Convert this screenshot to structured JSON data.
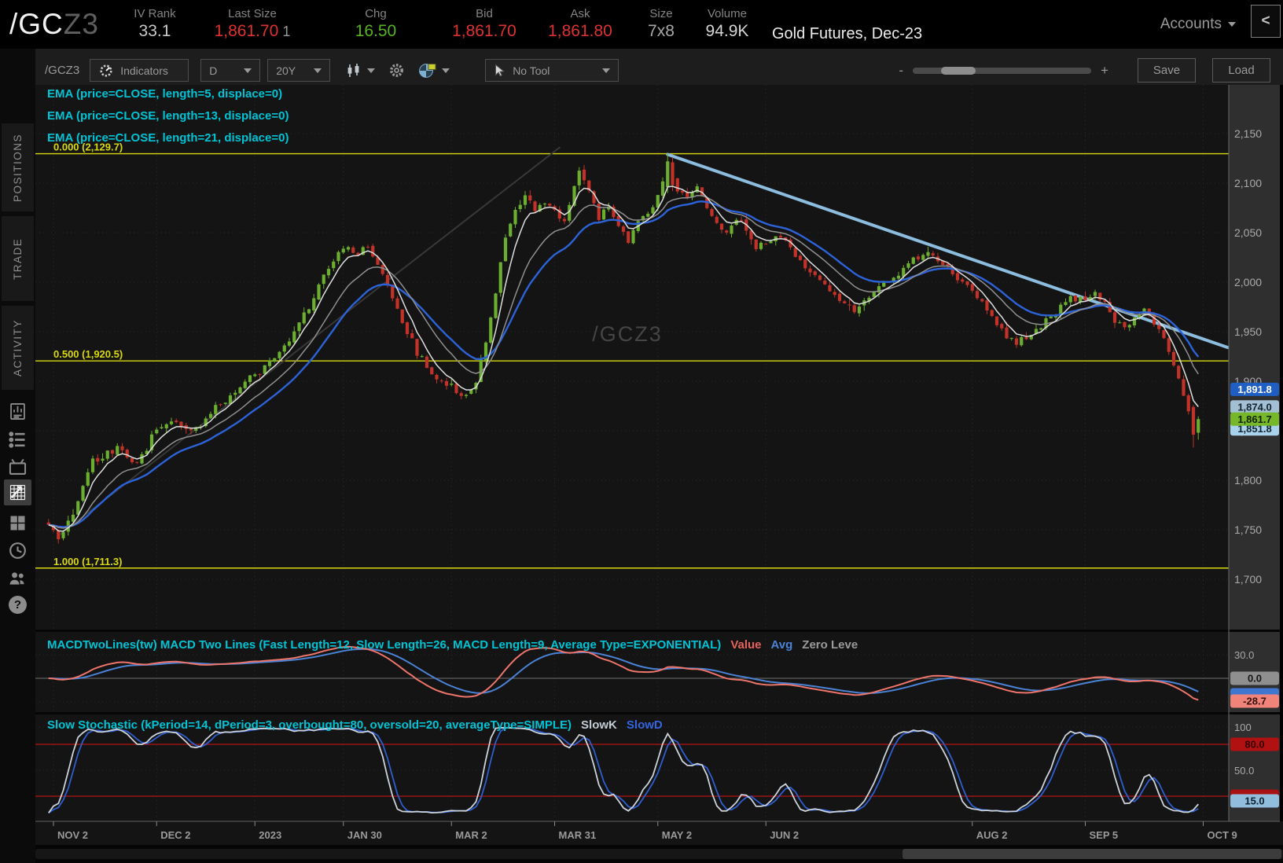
{
  "icons": {
    "minus": "-",
    "plus": "+",
    "help": "?",
    "collapse_left": "<"
  },
  "header": {
    "symbol_main": "/GC",
    "symbol_suffix": "Z3",
    "stats": [
      {
        "label": "IV Rank",
        "value": "33.1",
        "color": "#c9c9c9"
      },
      {
        "label": "Last Size",
        "value": "1,861.70",
        "extra": "1",
        "color": "#e03131"
      },
      {
        "label": "Chg",
        "value": "16.50",
        "color": "#55b41f"
      },
      {
        "label": "Bid",
        "value": "1,861.70",
        "color": "#e03131"
      },
      {
        "label": "Ask",
        "value": "1,861.80",
        "color": "#e03131"
      },
      {
        "label": "Size",
        "value": "7x8",
        "color": "#a8a8a8"
      },
      {
        "label": "Volume",
        "value": "94.9K",
        "color": "#d6d6d6"
      }
    ],
    "description": "Gold Futures, Dec-23",
    "accounts_label": "Accounts"
  },
  "sidebar": {
    "tabs": [
      "POSITIONS",
      "TRADE",
      "ACTIVITY"
    ],
    "icons": [
      "quote-book-icon",
      "watchlist-icon",
      "tv-icon",
      "chart-grid-icon",
      "dashboard-icon",
      "history-clock-icon",
      "community-icon",
      "help-icon"
    ],
    "active_icon": "chart-grid-icon"
  },
  "toolbar": {
    "symbol_label": "/GCZ3",
    "indicators_label": "Indicators",
    "timeframe": "D",
    "range": "20Y",
    "tool_label": "No Tool",
    "save_label": "Save",
    "load_label": "Load"
  },
  "chart_data": {
    "type": "candlestick",
    "symbol": "/GCZ3",
    "watermark": "/GCZ3",
    "timeframe": "D",
    "ema_labels": [
      "EMA (price=CLOSE, length=5, displace=0)",
      "EMA (price=CLOSE, length=13, displace=0)",
      "EMA (price=CLOSE, length=21, displace=0)"
    ],
    "emas": [
      {
        "length": 5,
        "color": "#dedede"
      },
      {
        "length": 13,
        "color": "#909090"
      },
      {
        "length": 21,
        "color": "#2c63d9"
      }
    ],
    "y_axis": {
      "ticks": [
        2150,
        2100,
        2050,
        2000,
        1950,
        1900,
        1850,
        1800,
        1750,
        1700
      ]
    },
    "x_axis": {
      "ticks": [
        {
          "label": "NOV 2",
          "day": 1
        },
        {
          "label": "DEC 2",
          "day": 22
        },
        {
          "label": "2023",
          "day": 42
        },
        {
          "label": "JAN 30",
          "day": 60
        },
        {
          "label": "MAR 2",
          "day": 82
        },
        {
          "label": "MAR 31",
          "day": 103
        },
        {
          "label": "MAY 2",
          "day": 124
        },
        {
          "label": "JUN 2",
          "day": 146
        },
        {
          "label": "AUG 2",
          "day": 188
        },
        {
          "label": "SEP 5",
          "day": 211
        },
        {
          "label": "OCT 9",
          "day": 235
        }
      ]
    },
    "fib_levels": [
      {
        "label": "0.000 (2,129.7)",
        "price": 2129.7
      },
      {
        "label": "0.500 (1,920.5)",
        "price": 1920.5
      },
      {
        "label": "1.000 (1,711.3)",
        "price": 1711.3
      }
    ],
    "trendlines": [
      {
        "from_day": 2,
        "from_price": 1744,
        "to_day": 104,
        "to_price": 2136,
        "color": "#383838",
        "width": 2
      },
      {
        "from_day": 126,
        "from_price": 2129,
        "to_day": 240,
        "to_price": 1934,
        "color": "#8cbcde",
        "width": 4
      }
    ],
    "last_price": 1861.7,
    "price_path_anchors": [
      [
        0,
        1758
      ],
      [
        2,
        1742
      ],
      [
        4,
        1756
      ],
      [
        7,
        1795
      ],
      [
        9,
        1818
      ],
      [
        12,
        1826
      ],
      [
        14,
        1835
      ],
      [
        16,
        1822
      ],
      [
        18,
        1818
      ],
      [
        20,
        1830
      ],
      [
        21,
        1845
      ],
      [
        23,
        1856
      ],
      [
        25,
        1864
      ],
      [
        27,
        1856
      ],
      [
        29,
        1848
      ],
      [
        31,
        1856
      ],
      [
        33,
        1868
      ],
      [
        35,
        1876
      ],
      [
        37,
        1884
      ],
      [
        39,
        1896
      ],
      [
        41,
        1905
      ],
      [
        43,
        1910
      ],
      [
        45,
        1920
      ],
      [
        47,
        1930
      ],
      [
        49,
        1942
      ],
      [
        51,
        1958
      ],
      [
        53,
        1975
      ],
      [
        55,
        1998
      ],
      [
        57,
        2015
      ],
      [
        59,
        2028
      ],
      [
        61,
        2034
      ],
      [
        63,
        2028
      ],
      [
        65,
        2038
      ],
      [
        67,
        2020
      ],
      [
        69,
        1998
      ],
      [
        71,
        1972
      ],
      [
        73,
        1950
      ],
      [
        75,
        1930
      ],
      [
        77,
        1915
      ],
      [
        79,
        1905
      ],
      [
        81,
        1898
      ],
      [
        83,
        1890
      ],
      [
        85,
        1886
      ],
      [
        87,
        1900
      ],
      [
        89,
        1938
      ],
      [
        91,
        1988
      ],
      [
        93,
        2045
      ],
      [
        95,
        2075
      ],
      [
        97,
        2088
      ],
      [
        99,
        2070
      ],
      [
        101,
        2082
      ],
      [
        103,
        2072
      ],
      [
        105,
        2060
      ],
      [
        107,
        2095
      ],
      [
        108,
        2112
      ],
      [
        110,
        2096
      ],
      [
        112,
        2065
      ],
      [
        114,
        2078
      ],
      [
        116,
        2058
      ],
      [
        118,
        2042
      ],
      [
        120,
        2060
      ],
      [
        122,
        2072
      ],
      [
        124,
        2085
      ],
      [
        126,
        2120
      ],
      [
        128,
        2092
      ],
      [
        130,
        2085
      ],
      [
        132,
        2098
      ],
      [
        134,
        2075
      ],
      [
        136,
        2060
      ],
      [
        138,
        2048
      ],
      [
        140,
        2065
      ],
      [
        142,
        2052
      ],
      [
        144,
        2035
      ],
      [
        146,
        2040
      ],
      [
        149,
        2048
      ],
      [
        152,
        2025
      ],
      [
        155,
        2010
      ],
      [
        158,
        1995
      ],
      [
        161,
        1980
      ],
      [
        164,
        1972
      ],
      [
        167,
        1985
      ],
      [
        170,
        1998
      ],
      [
        173,
        2010
      ],
      [
        176,
        2022
      ],
      [
        179,
        2030
      ],
      [
        182,
        2018
      ],
      [
        185,
        2005
      ],
      [
        188,
        1995
      ],
      [
        191,
        1972
      ],
      [
        194,
        1952
      ],
      [
        197,
        1938
      ],
      [
        200,
        1948
      ],
      [
        203,
        1962
      ],
      [
        206,
        1975
      ],
      [
        209,
        1985
      ],
      [
        211,
        1980
      ],
      [
        213,
        1990
      ],
      [
        215,
        1978
      ],
      [
        217,
        1962
      ],
      [
        219,
        1952
      ],
      [
        221,
        1965
      ],
      [
        223,
        1972
      ],
      [
        225,
        1958
      ],
      [
        227,
        1942
      ],
      [
        229,
        1918
      ],
      [
        231,
        1888
      ],
      [
        232,
        1872
      ],
      [
        233,
        1848
      ],
      [
        234,
        1862
      ]
    ],
    "price_bubbles": [
      {
        "text": "1,874.0",
        "price": 1874.0,
        "bg": "#a3bfd3",
        "fg": "#13232f"
      },
      {
        "text": "1,851.8",
        "price": 1851.8,
        "bg": "#a9d3ec",
        "fg": "#13232f"
      },
      {
        "text": "1,861.7",
        "price": 1861.7,
        "bg": "#76b82a",
        "fg": "#122005"
      },
      {
        "text": "1,891.8",
        "price": 1891.8,
        "bg": "#1f5ec2",
        "fg": "#ffffff"
      }
    ],
    "macd": {
      "label": "MACDTwoLines(tw) MACD Two Lines (Fast Length=12, Slow Length=26, MACD Length=9, Average Type=EXPONENTIAL)",
      "legend": [
        {
          "text": "Value",
          "color": "#e4635c"
        },
        {
          "text": "Avg",
          "color": "#4a82d6"
        },
        {
          "text": "Zero Leve",
          "color": "#9a9a9a"
        }
      ],
      "fast": 12,
      "slow": 26,
      "signal": 9,
      "top_tick": "30.0",
      "zero_label": "0.0",
      "current_value": "-28.7"
    },
    "stochastic": {
      "label": "Slow Stochastic (kPeriod=14, dPeriod=3, overbought=80, oversold=20, averageType=SIMPLE)",
      "legend": [
        {
          "text": "SlowK",
          "color": "#c3cdd6"
        },
        {
          "text": "SlowD",
          "color": "#3565e0"
        }
      ],
      "k_period": 14,
      "d_period": 3,
      "overbought": 80,
      "oversold": 20,
      "ticks": [
        "100",
        "50.0"
      ],
      "overbought_bubble": "80.0",
      "current_bubble": "15.0"
    }
  }
}
